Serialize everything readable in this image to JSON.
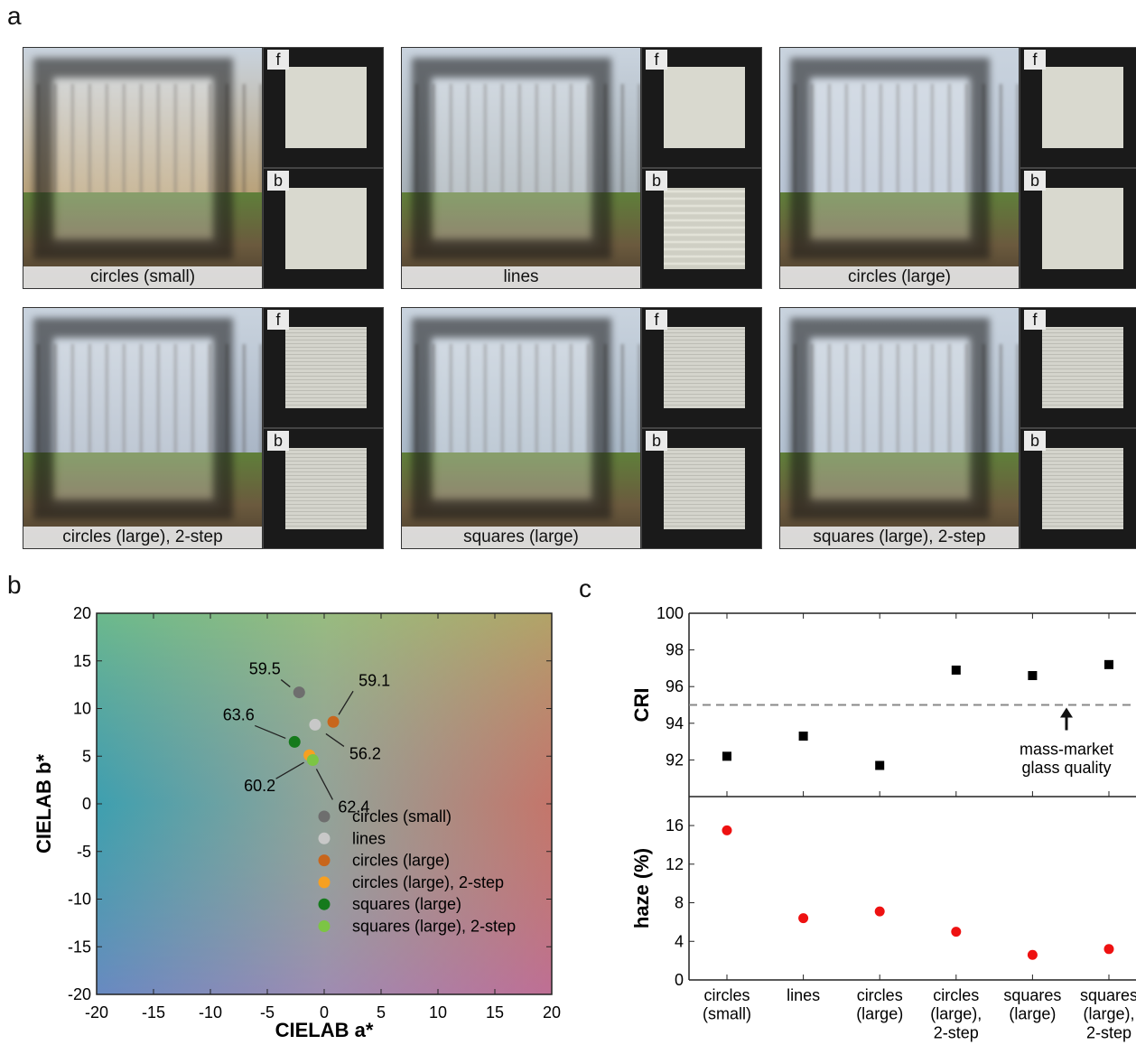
{
  "panel_letters": {
    "a": "a",
    "b": "b",
    "c": "c"
  },
  "photos": [
    {
      "label": "circles (small)",
      "thumb_f": "f",
      "thumb_b": "b",
      "tone": "#b9a27a"
    },
    {
      "label": "lines",
      "thumb_f": "f",
      "thumb_b": "b",
      "tone": "#a7b1b8"
    },
    {
      "label": "circles (large)",
      "thumb_f": "f",
      "thumb_b": "b",
      "tone": "#b8c4d4"
    },
    {
      "label": "circles (large), 2-step",
      "thumb_f": "f",
      "thumb_b": "b",
      "tone": "#aab6c6"
    },
    {
      "label": "squares (large)",
      "thumb_f": "f",
      "thumb_b": "b",
      "tone": "#aab9c8"
    },
    {
      "label": "squares (large), 2-step",
      "thumb_f": "f",
      "thumb_b": "b",
      "tone": "#b2c0d0"
    }
  ],
  "chart_data": [
    {
      "type": "scatter",
      "xlabel": "CIELAB a*",
      "ylabel": "CIELAB b*",
      "xlim": [
        -20,
        20
      ],
      "ylim": [
        -20,
        20
      ],
      "xticks": [
        -20,
        -15,
        -10,
        -5,
        0,
        5,
        10,
        15,
        20
      ],
      "yticks": [
        -20,
        -15,
        -10,
        -5,
        0,
        5,
        10,
        15,
        20
      ],
      "legend_placement": "bottom-right",
      "series": [
        {
          "name": "circles (small)",
          "color": "#6e6e6e",
          "x": -2.2,
          "y": 11.7,
          "label": "59.5"
        },
        {
          "name": "lines",
          "color": "#c8c8c8",
          "x": -0.8,
          "y": 8.3,
          "label": "56.2"
        },
        {
          "name": "circles (large)",
          "color": "#c8661c",
          "x": 0.8,
          "y": 8.6,
          "label": "59.1"
        },
        {
          "name": "circles (large), 2-step",
          "color": "#f7a021",
          "x": -1.3,
          "y": 5.1,
          "label": "60.2"
        },
        {
          "name": "squares (large)",
          "color": "#157a1c",
          "x": -2.6,
          "y": 6.5,
          "label": "63.6"
        },
        {
          "name": "squares (large), 2-step",
          "color": "#7cc544",
          "x": -1.0,
          "y": 4.6,
          "label": "62.4"
        }
      ]
    },
    {
      "type": "scatter",
      "ylabel": "CRI",
      "ylim": [
        90,
        100
      ],
      "yticks": [
        92,
        94,
        96,
        98,
        100
      ],
      "categories": [
        "circles\n(small)",
        "lines",
        "circles\n(large)",
        "circles\n(large),\n2-step",
        "squares\n(large)",
        "squares\n(large),\n2-step"
      ],
      "values": [
        92.2,
        93.3,
        91.7,
        96.9,
        96.6,
        97.2
      ],
      "reference_line": {
        "value": 95,
        "label": "mass-market\nglass quality"
      }
    },
    {
      "type": "scatter",
      "ylabel": "haze (%)",
      "ylim": [
        0,
        19
      ],
      "yticks": [
        0,
        4,
        8,
        12,
        16
      ],
      "categories": [
        "circles\n(small)",
        "lines",
        "circles\n(large)",
        "circles\n(large),\n2-step",
        "squares\n(large)",
        "squares\n(large),\n2-step"
      ],
      "values": [
        15.5,
        6.4,
        7.1,
        5.0,
        2.6,
        3.2
      ]
    }
  ]
}
